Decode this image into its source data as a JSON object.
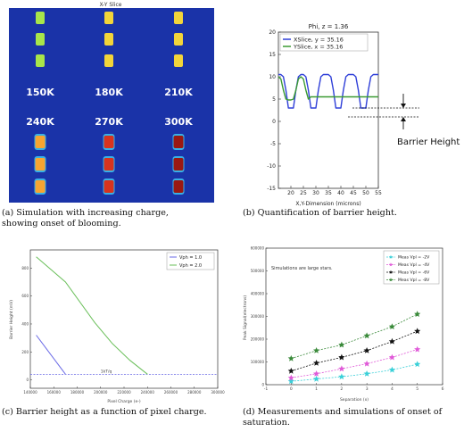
{
  "figure_a": {
    "title": "X-Y Slice",
    "charge_labels_top": [
      "150K",
      "180K",
      "210K"
    ],
    "charge_labels_bottom": [
      "240K",
      "270K",
      "300K"
    ],
    "caption": "(a)  Simulation with increasing charge,\nshowing onset of blooming.",
    "colors": {
      "background": "#1a33a8",
      "pixel_green": "#a8e64a",
      "pixel_yellow": "#f2d53a",
      "pixel_orange": "#f7a431",
      "pixel_red": "#d8331f",
      "pixel_darkred": "#9a1812",
      "halo": "#38b0e6"
    }
  },
  "chart_b": {
    "type": "line",
    "title": "Phi, z = 1.36",
    "xlabel": "X,Y-Dimension (microns)",
    "ylabel": "",
    "xlim": [
      15,
      55
    ],
    "ylim": [
      -15,
      20
    ],
    "xticks": [
      "20",
      "25",
      "30",
      "35",
      "40",
      "45",
      "50",
      "55"
    ],
    "yticks": [
      "20",
      "15",
      "10",
      "5",
      "0",
      "-5",
      "-10",
      "-15"
    ],
    "legend": [
      "XSlice, y = 35.16",
      "YSlice, x = 35.16"
    ],
    "series": [
      {
        "name": "XSlice, y = 35.16",
        "color": "#2f3fd8",
        "x": [
          15,
          16,
          17,
          18,
          19,
          20,
          21,
          22,
          23,
          24,
          25,
          26,
          27,
          28,
          29,
          30,
          31,
          32,
          33,
          34,
          35,
          36,
          37,
          38,
          39,
          40,
          41,
          42,
          43,
          44,
          45,
          46,
          47,
          48,
          49,
          50,
          51,
          52,
          53,
          54,
          55
        ],
        "y": [
          10.5,
          10.5,
          10,
          7,
          3,
          3,
          3,
          7,
          10,
          10.5,
          10.5,
          10,
          7,
          3,
          3,
          3,
          7,
          10,
          10.5,
          10.5,
          10.5,
          10,
          7,
          3,
          3,
          3,
          7,
          10,
          10.5,
          10.5,
          10.5,
          10,
          7,
          3,
          3,
          3,
          7,
          10,
          10.5,
          10.5,
          10.5
        ]
      },
      {
        "name": "YSlice, x = 35.16",
        "color": "#3a9a32",
        "x": [
          15,
          16,
          17,
          18,
          19,
          20,
          21,
          22,
          23,
          24,
          25,
          26,
          27,
          28,
          29,
          30,
          31,
          32,
          33,
          34,
          35,
          36,
          37,
          38,
          39,
          40,
          41,
          42,
          43,
          44,
          45,
          46,
          47,
          48,
          49,
          50,
          51,
          52,
          53,
          54,
          55
        ],
        "y": [
          10,
          9.5,
          7,
          5,
          4.8,
          4.8,
          5,
          7,
          9.5,
          10,
          9.5,
          7,
          5,
          5.5,
          5.5,
          5.5,
          5.5,
          5.5,
          5.5,
          5.5,
          5.5,
          5.5,
          5.5,
          5.5,
          5.5,
          5.5,
          5.5,
          5.5,
          5.5,
          5.5,
          5.5,
          5.5,
          5.5,
          5.5,
          5.5,
          5.5,
          5.5,
          5.5,
          5.5,
          5.5,
          5.5
        ]
      }
    ],
    "annotation": "Barrier Height",
    "caption": "(b) Quantification of barrier height."
  },
  "chart_c": {
    "type": "line",
    "xlabel": "Pixel Charge (e-)",
    "ylabel": "Barrier Height (mV)",
    "xticks": [
      "140000",
      "160000",
      "180000",
      "200000",
      "220000",
      "240000",
      "260000",
      "280000",
      "300000"
    ],
    "yticks": [
      "0",
      "200",
      "400",
      "600",
      "800"
    ],
    "xlim": [
      140000,
      300000
    ],
    "ylim": [
      -60,
      930
    ],
    "legend": [
      "Vph = 1.0",
      "Vph = 2.0"
    ],
    "series": [
      {
        "name": "Vph = 1.0",
        "color": "#6a6ae6",
        "x": [
          145000,
          170000
        ],
        "y": [
          320,
          40
        ]
      },
      {
        "name": "Vph = 2.0",
        "color": "#6abf5a",
        "x": [
          145000,
          170000,
          195000,
          210000,
          225000,
          240000
        ],
        "y": [
          880,
          700,
          410,
          260,
          140,
          40
        ]
      }
    ],
    "hline": {
      "y": 40,
      "label": "1kT/q"
    },
    "caption": "(c) Barrier height as a function of pixel charge."
  },
  "chart_d": {
    "type": "scatter",
    "xlabel": "Separation (x)",
    "ylabel": "Peak Signal(electrons)",
    "note": "Simulations are large stars.",
    "xticks": [
      "-1",
      "0",
      "1",
      "2",
      "3",
      "4",
      "5",
      "6"
    ],
    "yticks": [
      "0",
      "100000",
      "200000",
      "300000",
      "400000",
      "500000",
      "600000"
    ],
    "xlim": [
      -1,
      6
    ],
    "ylim": [
      0,
      600000
    ],
    "legend": [
      "Meas Vpl = -2V",
      "Meas Vpl = -4V",
      "Meas Vpl = -6V",
      "Meas Vpl = -8V"
    ],
    "series": [
      {
        "name": "Meas Vpl = -2V",
        "color": "#3ad0d8",
        "x": [
          0,
          1,
          2,
          3,
          4,
          5
        ],
        "y": [
          15000,
          25000,
          35000,
          48000,
          65000,
          90000
        ]
      },
      {
        "name": "Meas Vpl = -4V",
        "color": "#e05ad8",
        "x": [
          0,
          1,
          2,
          3,
          4,
          5
        ],
        "y": [
          30000,
          48000,
          70000,
          92000,
          120000,
          155000
        ]
      },
      {
        "name": "Meas Vpl = -6V",
        "color": "#111111",
        "x": [
          0,
          1,
          2,
          3,
          4,
          5
        ],
        "y": [
          60000,
          95000,
          120000,
          150000,
          190000,
          235000
        ]
      },
      {
        "name": "Meas Vpl = -8V",
        "color": "#3a8a3a",
        "x": [
          0,
          1,
          2,
          3,
          4,
          5
        ],
        "y": [
          115000,
          150000,
          175000,
          215000,
          255000,
          310000
        ]
      }
    ],
    "caption": "(d)  Measurements and simulations of onset of\nsaturation."
  }
}
